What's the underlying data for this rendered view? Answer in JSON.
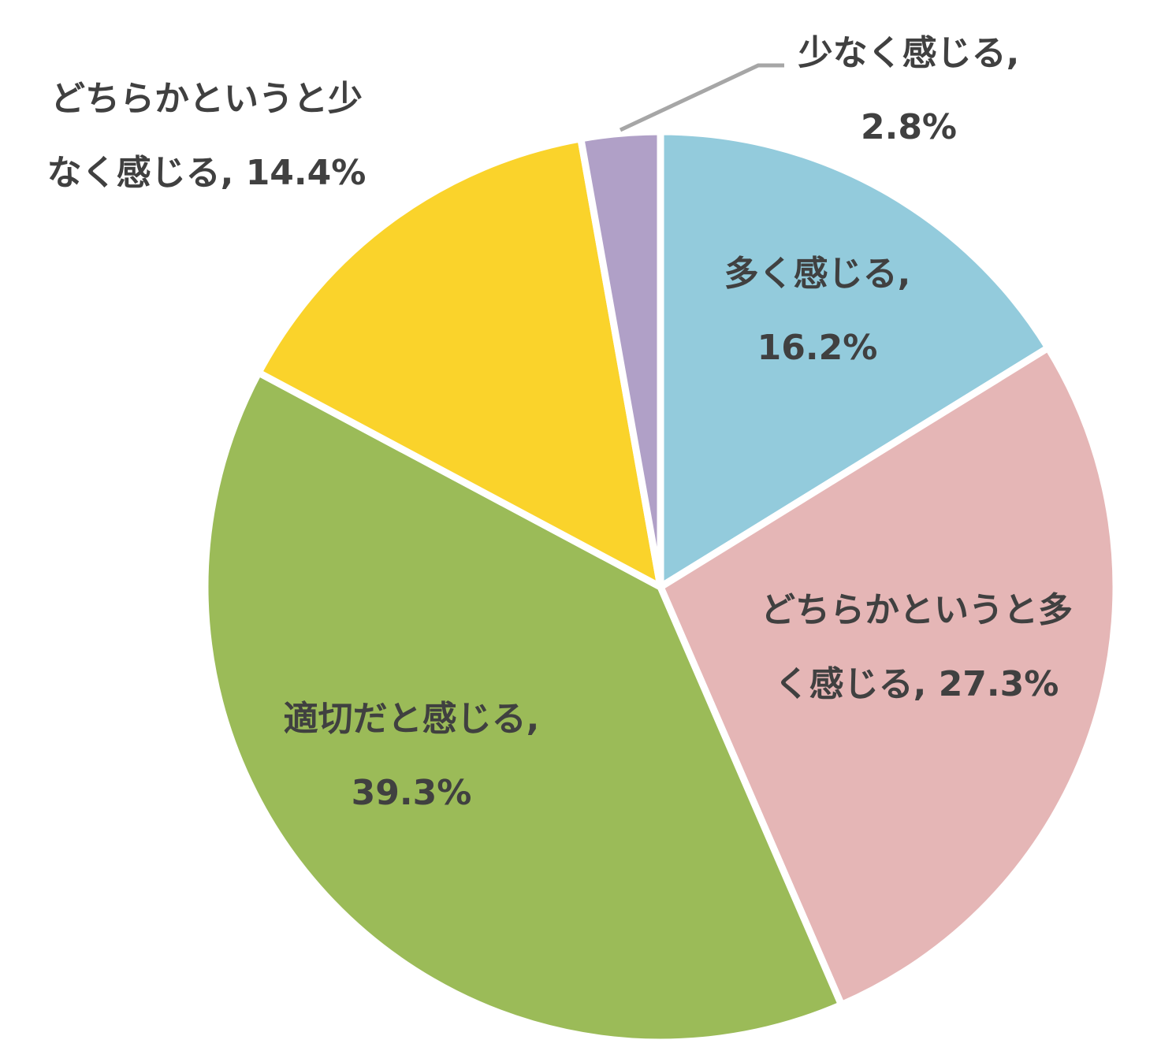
{
  "chart_data": {
    "type": "pie",
    "title": "",
    "start_angle_deg": 0,
    "direction": "clockwise",
    "slices": [
      {
        "category": "多く感じる",
        "value": 16.2,
        "color": "#93cbdc",
        "label_lines": [
          "多く感じる,",
          "16.2%"
        ]
      },
      {
        "category": "どちらかというと多く感じる",
        "value": 27.3,
        "color": "#e5b6b6",
        "label_lines": [
          "どちらかというと多",
          "く感じる, 27.3%"
        ]
      },
      {
        "category": "適切だと感じる",
        "value": 39.3,
        "color": "#9bbb58",
        "label_lines": [
          "適切だと感じる,",
          "39.3%"
        ]
      },
      {
        "category": "どちらかというと少なく感じる",
        "value": 14.4,
        "color": "#fad32b",
        "label_lines": [
          "どちらかというと少",
          "なく感じる, 14.4%"
        ]
      },
      {
        "category": "少なく感じる",
        "value": 2.8,
        "color": "#b0a0c7",
        "label_lines": [
          "少なく感じる,",
          "2.8%"
        ]
      }
    ],
    "legend": "none",
    "data_labels": "category, percentage"
  }
}
